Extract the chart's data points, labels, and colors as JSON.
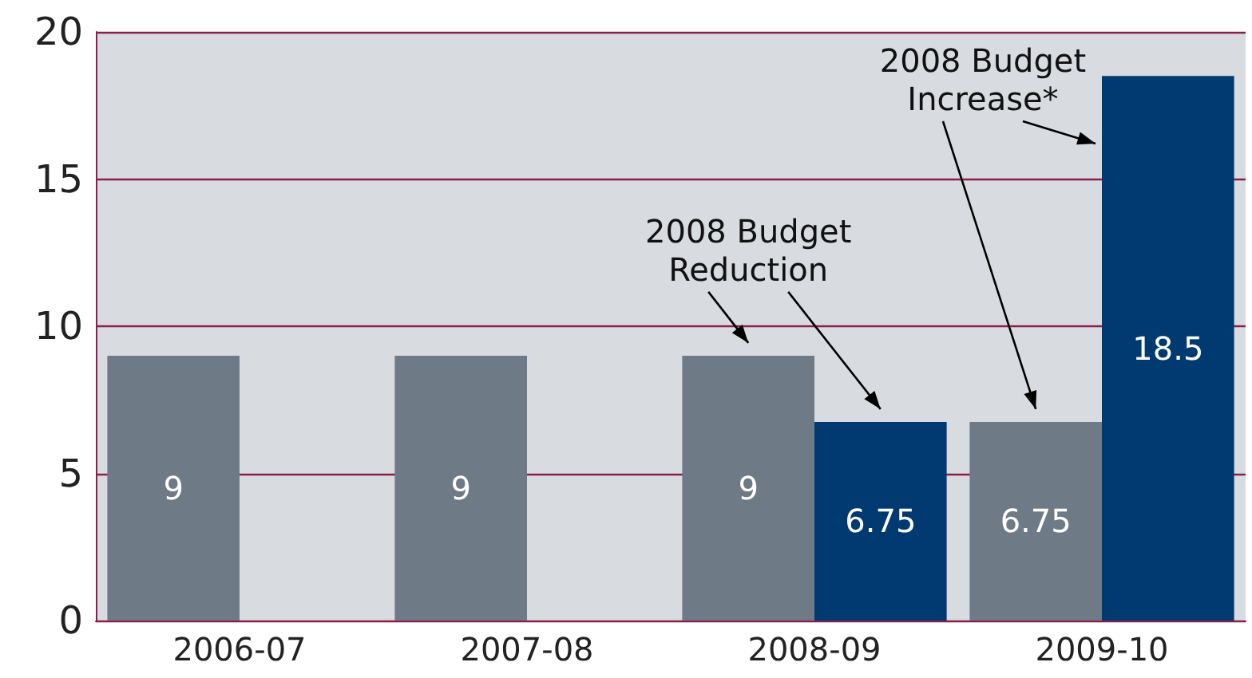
{
  "chart_data": {
    "type": "bar",
    "categories": [
      "2006-07",
      "2007-08",
      "2008-09",
      "2009-10"
    ],
    "series": [
      {
        "color": "#6e7a86",
        "values": [
          9,
          9,
          9,
          6.75
        ]
      },
      {
        "color": "#003a70",
        "values": [
          null,
          null,
          6.75,
          18.5
        ]
      }
    ],
    "ylim": [
      0,
      20
    ],
    "yticks": [
      0,
      5,
      10,
      15,
      20
    ],
    "grid": "y",
    "data_labels": true,
    "annotations": [
      {
        "text": "2008 Budget\nReduction",
        "x": "2008-09",
        "y": 9
      },
      {
        "text": "2008 Budget\nIncrease*",
        "x": "2009-10",
        "y": 18.5
      }
    ]
  }
}
